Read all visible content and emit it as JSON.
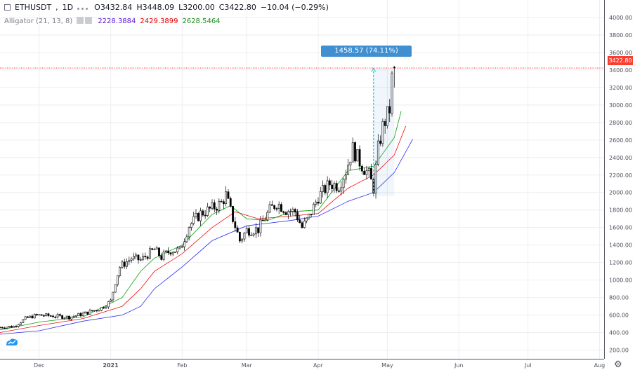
{
  "header": {
    "symbol": "ETHUSDT",
    "interval": "1D",
    "open_label": "O",
    "open": "3432.84",
    "high_label": "H",
    "high": "3448.09",
    "low_label": "L",
    "low": "3200.00",
    "close_label": "C",
    "close": "3422.80",
    "change": "−10.04 (−0.29%)"
  },
  "indicator": {
    "name": "Alligator (21, 13, 8)",
    "jaw_value": "2228.3884",
    "teeth_value": "2429.3899",
    "lips_value": "2628.5464",
    "colors": {
      "jaw": "#2b2ef0",
      "teeth": "#f01010",
      "lips": "#0b9e0b"
    }
  },
  "measure": {
    "label": "1458.57 (74.11%) 145857"
  },
  "price_tag": "3422.80",
  "colors": {
    "candle": "#000000",
    "price_line": "#ff0000",
    "measure": "#3f8fd1",
    "grid": "#eceef2"
  },
  "icons": {
    "settings": "gear-icon",
    "logo": "tradingview-logo-icon"
  },
  "chart_data": {
    "type": "candlestick",
    "y_axis": {
      "ticks": [
        "200.00",
        "400.00",
        "600.00",
        "800.00",
        "1000.00",
        "1200.00",
        "1400.00",
        "1600.00",
        "1800.00",
        "2000.00",
        "2200.00",
        "2400.00",
        "2600.00",
        "2800.00",
        "3000.00",
        "3200.00",
        "3400.00",
        "3600.00",
        "3800.00",
        "4000.00"
      ],
      "ylim": [
        100,
        4200
      ],
      "position": "right"
    },
    "x_axis": {
      "ticks": [
        "Dec",
        "2021",
        "Feb",
        "Mar",
        "Apr",
        "May",
        "Jun",
        "Jul",
        "Aug"
      ],
      "xlim": [
        "2020-11-14",
        "2021-08-03"
      ]
    },
    "grid": true,
    "last_close": 3422.8,
    "measure": {
      "from_date": "2021-04-25",
      "from_price": 1960,
      "to_price": 3418.57,
      "change": 1458.57,
      "change_pct": 74.11
    },
    "anchors": [
      [
        "2020-11-14",
        460
      ],
      [
        "2020-11-20",
        470
      ],
      [
        "2020-11-25",
        560
      ],
      [
        "2020-11-30",
        600
      ],
      [
        "2020-12-07",
        590
      ],
      [
        "2020-12-14",
        575
      ],
      [
        "2020-12-21",
        620
      ],
      [
        "2020-12-28",
        680
      ],
      [
        "2021-01-01",
        760
      ],
      [
        "2021-01-03",
        980
      ],
      [
        "2021-01-05",
        1150
      ],
      [
        "2021-01-10",
        1250
      ],
      [
        "2021-01-14",
        1230
      ],
      [
        "2021-01-17",
        1290
      ],
      [
        "2021-01-20",
        1350
      ],
      [
        "2021-01-23",
        1260
      ],
      [
        "2021-01-27",
        1340
      ],
      [
        "2021-01-31",
        1340
      ],
      [
        "2021-02-04",
        1620
      ],
      [
        "2021-02-09",
        1760
      ],
      [
        "2021-02-14",
        1820
      ],
      [
        "2021-02-18",
        1880
      ],
      [
        "2021-02-20",
        1970
      ],
      [
        "2021-02-23",
        1700
      ],
      [
        "2021-02-26",
        1450
      ],
      [
        "2021-03-01",
        1570
      ],
      [
        "2021-03-06",
        1580
      ],
      [
        "2021-03-11",
        1800
      ],
      [
        "2021-03-14",
        1880
      ],
      [
        "2021-03-18",
        1800
      ],
      [
        "2021-03-22",
        1780
      ],
      [
        "2021-03-25",
        1600
      ],
      [
        "2021-03-28",
        1720
      ],
      [
        "2021-04-01",
        1950
      ],
      [
        "2021-04-06",
        2100
      ],
      [
        "2021-04-10",
        2080
      ],
      [
        "2021-04-13",
        2250
      ],
      [
        "2021-04-16",
        2500
      ],
      [
        "2021-04-19",
        2350
      ],
      [
        "2021-04-23",
        2200
      ],
      [
        "2021-04-25",
        2050
      ],
      [
        "2021-04-27",
        2500
      ],
      [
        "2021-04-29",
        2750
      ],
      [
        "2021-05-02",
        2950
      ],
      [
        "2021-05-03",
        3300
      ],
      [
        "2021-05-04",
        3422.8
      ]
    ],
    "series": [
      {
        "name": "Alligator (21, 13, 8)",
        "role": "jaw",
        "color": "#2b2ef0",
        "points": [
          [
            "2020-11-14",
            380
          ],
          [
            "2020-12-01",
            420
          ],
          [
            "2020-12-20",
            530
          ],
          [
            "2021-01-06",
            600
          ],
          [
            "2021-01-14",
            700
          ],
          [
            "2021-01-20",
            900
          ],
          [
            "2021-02-01",
            1150
          ],
          [
            "2021-02-14",
            1450
          ],
          [
            "2021-03-01",
            1620
          ],
          [
            "2021-03-20",
            1680
          ],
          [
            "2021-04-01",
            1730
          ],
          [
            "2021-04-14",
            1900
          ],
          [
            "2021-04-25",
            2000
          ],
          [
            "2021-05-04",
            2228
          ],
          [
            "2021-05-12",
            2610
          ]
        ]
      },
      {
        "name": "Alligator (21, 13, 8)",
        "role": "teeth",
        "color": "#f01010",
        "points": [
          [
            "2020-11-14",
            400
          ],
          [
            "2020-12-01",
            480
          ],
          [
            "2020-12-20",
            560
          ],
          [
            "2021-01-06",
            700
          ],
          [
            "2021-01-14",
            900
          ],
          [
            "2021-01-20",
            1100
          ],
          [
            "2021-02-01",
            1300
          ],
          [
            "2021-02-14",
            1600
          ],
          [
            "2021-02-24",
            1780
          ],
          [
            "2021-03-06",
            1700
          ],
          [
            "2021-03-20",
            1730
          ],
          [
            "2021-04-01",
            1760
          ],
          [
            "2021-04-14",
            2050
          ],
          [
            "2021-04-25",
            2200
          ],
          [
            "2021-05-04",
            2429
          ],
          [
            "2021-05-09",
            2760
          ]
        ]
      },
      {
        "name": "Alligator (21, 13, 8)",
        "role": "lips",
        "color": "#0b9e0b",
        "points": [
          [
            "2020-11-14",
            430
          ],
          [
            "2020-12-01",
            520
          ],
          [
            "2020-12-20",
            580
          ],
          [
            "2021-01-06",
            800
          ],
          [
            "2021-01-14",
            1100
          ],
          [
            "2021-01-20",
            1250
          ],
          [
            "2021-02-01",
            1400
          ],
          [
            "2021-02-14",
            1750
          ],
          [
            "2021-02-22",
            1850
          ],
          [
            "2021-03-01",
            1700
          ],
          [
            "2021-03-10",
            1680
          ],
          [
            "2021-03-20",
            1780
          ],
          [
            "2021-04-01",
            1800
          ],
          [
            "2021-04-14",
            2250
          ],
          [
            "2021-04-25",
            2300
          ],
          [
            "2021-05-04",
            2628
          ],
          [
            "2021-05-07",
            2930
          ]
        ]
      }
    ]
  }
}
